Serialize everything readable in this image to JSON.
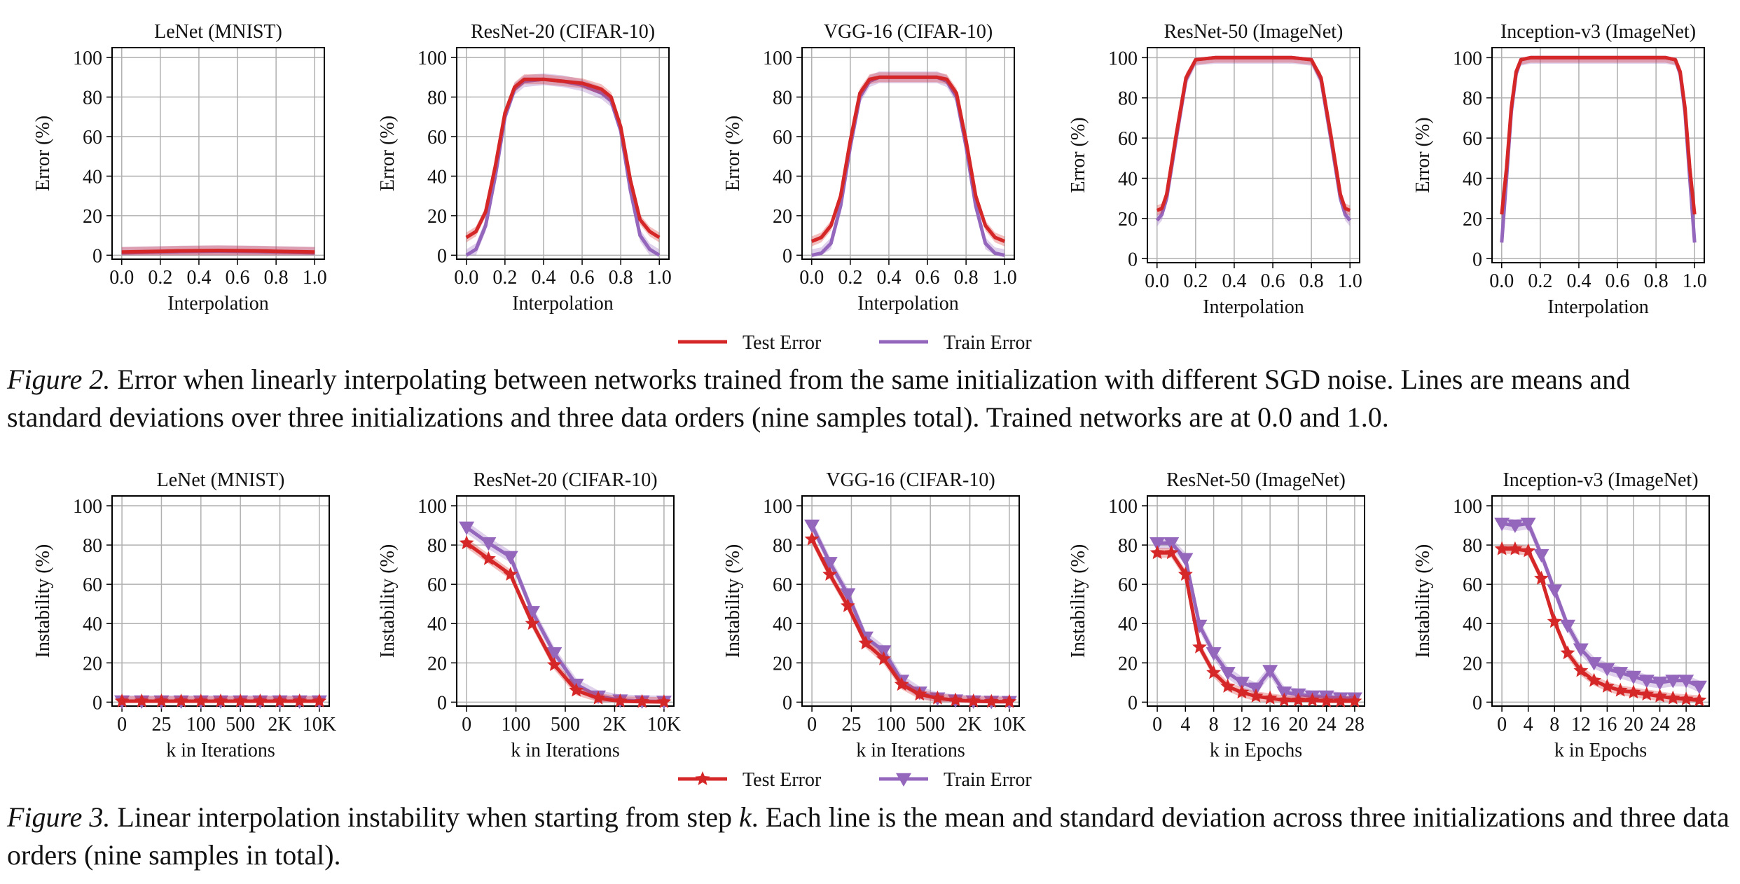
{
  "figure2": {
    "caption_label": "Figure 2.",
    "caption_text": " Error when linearly interpolating between networks trained from the same initialization with different SGD noise. Lines are means and standard deviations over three initializations and three data orders (nine samples total). Trained networks are at 0.0 and 1.0.",
    "legend": [
      "Test Error",
      "Train Error"
    ]
  },
  "figure3": {
    "caption_label": "Figure 3.",
    "caption_text": " Linear interpolation instability when starting from step ",
    "caption_k": "k",
    "caption_tail": ". Each line is the mean and standard deviation across three initializations and three data orders (nine samples in total).",
    "legend": [
      "Test Error",
      "Train Error"
    ]
  },
  "colors": {
    "test": "#d62728",
    "train": "#9467bd"
  },
  "chart_data": [
    {
      "type": "line",
      "title": "LeNet (MNIST)",
      "xlabel": "Interpolation",
      "ylabel": "Error (%)",
      "xlim": [
        0,
        1
      ],
      "ylim": [
        0,
        100
      ],
      "xticks": [
        "0.0",
        "0.2",
        "0.4",
        "0.6",
        "0.8",
        "1.0"
      ],
      "yticks": [
        "0",
        "20",
        "40",
        "60",
        "80",
        "100"
      ],
      "grid": true,
      "x": [
        0,
        0.1,
        0.2,
        0.3,
        0.4,
        0.5,
        0.6,
        0.7,
        0.8,
        0.9,
        1.0
      ],
      "series": [
        {
          "name": "Test Error",
          "values": [
            1.6,
            1.8,
            2.0,
            2.2,
            2.3,
            2.4,
            2.3,
            2.2,
            2.0,
            1.8,
            1.6
          ]
        },
        {
          "name": "Train Error",
          "values": [
            1.2,
            1.4,
            1.6,
            1.8,
            1.9,
            2.0,
            1.9,
            1.8,
            1.6,
            1.4,
            1.2
          ]
        }
      ]
    },
    {
      "type": "line",
      "title": "ResNet-20 (CIFAR-10)",
      "xlabel": "Interpolation",
      "ylabel": "Error (%)",
      "xlim": [
        0,
        1
      ],
      "ylim": [
        0,
        100
      ],
      "xticks": [
        "0.0",
        "0.2",
        "0.4",
        "0.6",
        "0.8",
        "1.0"
      ],
      "yticks": [
        "0",
        "20",
        "40",
        "60",
        "80",
        "100"
      ],
      "grid": true,
      "x": [
        0,
        0.05,
        0.1,
        0.15,
        0.2,
        0.25,
        0.3,
        0.4,
        0.5,
        0.6,
        0.7,
        0.75,
        0.8,
        0.85,
        0.9,
        0.95,
        1.0
      ],
      "series": [
        {
          "name": "Test Error",
          "values": [
            9,
            12,
            22,
            45,
            72,
            85,
            89,
            89,
            88,
            87,
            84,
            80,
            65,
            38,
            18,
            12,
            9
          ]
        },
        {
          "name": "Train Error",
          "values": [
            0,
            3,
            15,
            40,
            70,
            84,
            88,
            89,
            88,
            86,
            82,
            78,
            63,
            33,
            10,
            3,
            0
          ]
        }
      ]
    },
    {
      "type": "line",
      "title": "VGG-16 (CIFAR-10)",
      "xlabel": "Interpolation",
      "ylabel": "Error (%)",
      "xlim": [
        0,
        1
      ],
      "ylim": [
        0,
        100
      ],
      "xticks": [
        "0.0",
        "0.2",
        "0.4",
        "0.6",
        "0.8",
        "1.0"
      ],
      "yticks": [
        "0",
        "20",
        "40",
        "60",
        "80",
        "100"
      ],
      "grid": true,
      "x": [
        0,
        0.05,
        0.1,
        0.15,
        0.2,
        0.25,
        0.3,
        0.35,
        0.4,
        0.5,
        0.6,
        0.65,
        0.7,
        0.75,
        0.8,
        0.85,
        0.9,
        0.95,
        1.0
      ],
      "series": [
        {
          "name": "Test Error",
          "values": [
            7,
            9,
            15,
            30,
            58,
            82,
            89,
            90,
            90,
            90,
            90,
            90,
            89,
            82,
            58,
            30,
            15,
            9,
            7
          ]
        },
        {
          "name": "Train Error",
          "values": [
            0,
            1,
            6,
            25,
            55,
            80,
            88,
            90,
            90,
            90,
            90,
            90,
            88,
            80,
            55,
            25,
            6,
            1,
            0
          ]
        }
      ]
    },
    {
      "type": "line",
      "title": "ResNet-50 (ImageNet)",
      "xlabel": "Interpolation",
      "ylabel": "Error (%)",
      "xlim": [
        0,
        1
      ],
      "ylim": [
        0,
        100
      ],
      "xticks": [
        "0.0",
        "0.2",
        "0.4",
        "0.6",
        "0.8",
        "1.0"
      ],
      "yticks": [
        "0",
        "20",
        "40",
        "60",
        "80",
        "100"
      ],
      "grid": true,
      "x": [
        0,
        0.025,
        0.05,
        0.1,
        0.15,
        0.2,
        0.3,
        0.5,
        0.7,
        0.8,
        0.85,
        0.9,
        0.95,
        0.975,
        1.0
      ],
      "series": [
        {
          "name": "Test Error",
          "values": [
            24,
            25,
            32,
            62,
            90,
            99,
            100,
            100,
            100,
            99,
            90,
            62,
            32,
            25,
            24
          ]
        },
        {
          "name": "Train Error",
          "values": [
            19,
            22,
            30,
            60,
            89,
            99,
            100,
            100,
            100,
            99,
            89,
            60,
            30,
            22,
            19
          ]
        }
      ]
    },
    {
      "type": "line",
      "title": "Inception-v3 (ImageNet)",
      "xlabel": "Interpolation",
      "ylabel": "Error (%)",
      "xlim": [
        0,
        1
      ],
      "ylim": [
        0,
        100
      ],
      "xticks": [
        "0.0",
        "0.2",
        "0.4",
        "0.6",
        "0.8",
        "1.0"
      ],
      "yticks": [
        "0",
        "20",
        "40",
        "60",
        "80",
        "100"
      ],
      "grid": true,
      "x": [
        0,
        0.025,
        0.05,
        0.075,
        0.1,
        0.15,
        0.3,
        0.5,
        0.7,
        0.85,
        0.9,
        0.925,
        0.95,
        0.975,
        1.0
      ],
      "series": [
        {
          "name": "Test Error",
          "values": [
            22,
            45,
            75,
            93,
            99,
            100,
            100,
            100,
            100,
            100,
            99,
            93,
            75,
            45,
            22
          ]
        },
        {
          "name": "Train Error",
          "values": [
            8,
            40,
            73,
            92,
            99,
            100,
            100,
            100,
            100,
            100,
            99,
            92,
            73,
            40,
            8
          ]
        }
      ]
    },
    {
      "type": "line",
      "title": "LeNet (MNIST)",
      "xlabel": "k in Iterations",
      "ylabel": "Instability (%)",
      "ylim": [
        0,
        100
      ],
      "xticks": [
        "0",
        "25",
        "100",
        "500",
        "2K",
        "10K"
      ],
      "yticks": [
        "0",
        "20",
        "40",
        "60",
        "80",
        "100"
      ],
      "grid": true,
      "x": [
        0,
        1,
        2,
        3,
        4,
        5,
        6,
        7,
        8,
        9,
        10
      ],
      "series": [
        {
          "name": "Test Error",
          "values": [
            0.5,
            0.5,
            0.5,
            0.5,
            0.5,
            0.5,
            0.5,
            0.5,
            0.5,
            0.5,
            0.5
          ]
        },
        {
          "name": "Train Error",
          "values": [
            0.5,
            0.5,
            0.5,
            0.5,
            0.5,
            0.5,
            0.5,
            0.5,
            0.5,
            0.5,
            0.5
          ]
        }
      ]
    },
    {
      "type": "line",
      "title": "ResNet-20 (CIFAR-10)",
      "xlabel": "k in Iterations",
      "ylabel": "Instability (%)",
      "ylim": [
        0,
        100
      ],
      "xticks": [
        "0",
        "100",
        "500",
        "2K",
        "10K"
      ],
      "yticks": [
        "0",
        "20",
        "40",
        "60",
        "80",
        "100"
      ],
      "grid": true,
      "x": [
        0,
        1,
        2,
        3,
        4,
        5,
        6,
        7,
        8,
        9
      ],
      "series": [
        {
          "name": "Test Error",
          "values": [
            81,
            73,
            65,
            40,
            19,
            6,
            2,
            0.5,
            0.2,
            0.1
          ]
        },
        {
          "name": "Train Error",
          "values": [
            89,
            81,
            74,
            46,
            25,
            9,
            3,
            1,
            0.5,
            0.3
          ]
        }
      ]
    },
    {
      "type": "line",
      "title": "VGG-16 (CIFAR-10)",
      "xlabel": "k in Iterations",
      "ylabel": "Instability (%)",
      "ylim": [
        0,
        100
      ],
      "xticks": [
        "0",
        "25",
        "100",
        "500",
        "2K",
        "10K"
      ],
      "yticks": [
        "0",
        "20",
        "40",
        "60",
        "80",
        "100"
      ],
      "grid": true,
      "x": [
        0,
        1,
        2,
        3,
        4,
        5,
        6,
        7,
        8,
        9,
        10,
        11
      ],
      "series": [
        {
          "name": "Test Error",
          "values": [
            83,
            65,
            49,
            30,
            22,
            9,
            4,
            2,
            1,
            0.5,
            0.3,
            0.2
          ]
        },
        {
          "name": "Train Error",
          "values": [
            90,
            71,
            55,
            33,
            26,
            11,
            5,
            2,
            1,
            0.5,
            0.3,
            0.2
          ]
        }
      ]
    },
    {
      "type": "line",
      "title": "ResNet-50 (ImageNet)",
      "xlabel": "k in Epochs",
      "ylabel": "Instability (%)",
      "xlim": [
        0,
        28
      ],
      "ylim": [
        0,
        100
      ],
      "xticks": [
        "0",
        "4",
        "8",
        "12",
        "16",
        "20",
        "24",
        "28"
      ],
      "yticks": [
        "0",
        "20",
        "40",
        "60",
        "80",
        "100"
      ],
      "grid": true,
      "x": [
        0,
        2,
        4,
        6,
        8,
        10,
        12,
        14,
        16,
        18,
        20,
        22,
        24,
        26,
        28
      ],
      "series": [
        {
          "name": "Test Error",
          "values": [
            76,
            76,
            65,
            28,
            15,
            8,
            5,
            3,
            2,
            1,
            1,
            1,
            0.5,
            0.5,
            0.5
          ]
        },
        {
          "name": "Train Error",
          "values": [
            81,
            81,
            73,
            39,
            25,
            15,
            10,
            7,
            16,
            5,
            4,
            3,
            3,
            2,
            2
          ]
        }
      ]
    },
    {
      "type": "line",
      "title": "Inception-v3 (ImageNet)",
      "xlabel": "k in Epochs",
      "ylabel": "Instability (%)",
      "xlim": [
        0,
        30
      ],
      "ylim": [
        0,
        100
      ],
      "xticks": [
        "0",
        "4",
        "8",
        "12",
        "16",
        "20",
        "24",
        "28"
      ],
      "yticks": [
        "0",
        "20",
        "40",
        "60",
        "80",
        "100"
      ],
      "grid": true,
      "x": [
        0,
        2,
        4,
        6,
        8,
        10,
        12,
        14,
        16,
        18,
        20,
        22,
        24,
        26,
        28,
        30
      ],
      "series": [
        {
          "name": "Test Error",
          "values": [
            78,
            78,
            77,
            63,
            41,
            25,
            16,
            11,
            8,
            6,
            5,
            4,
            3,
            2,
            1.5,
            1
          ]
        },
        {
          "name": "Train Error",
          "values": [
            91,
            90,
            91,
            75,
            57,
            39,
            27,
            20,
            17,
            15,
            13,
            11,
            10,
            11,
            11,
            8
          ]
        }
      ]
    }
  ]
}
